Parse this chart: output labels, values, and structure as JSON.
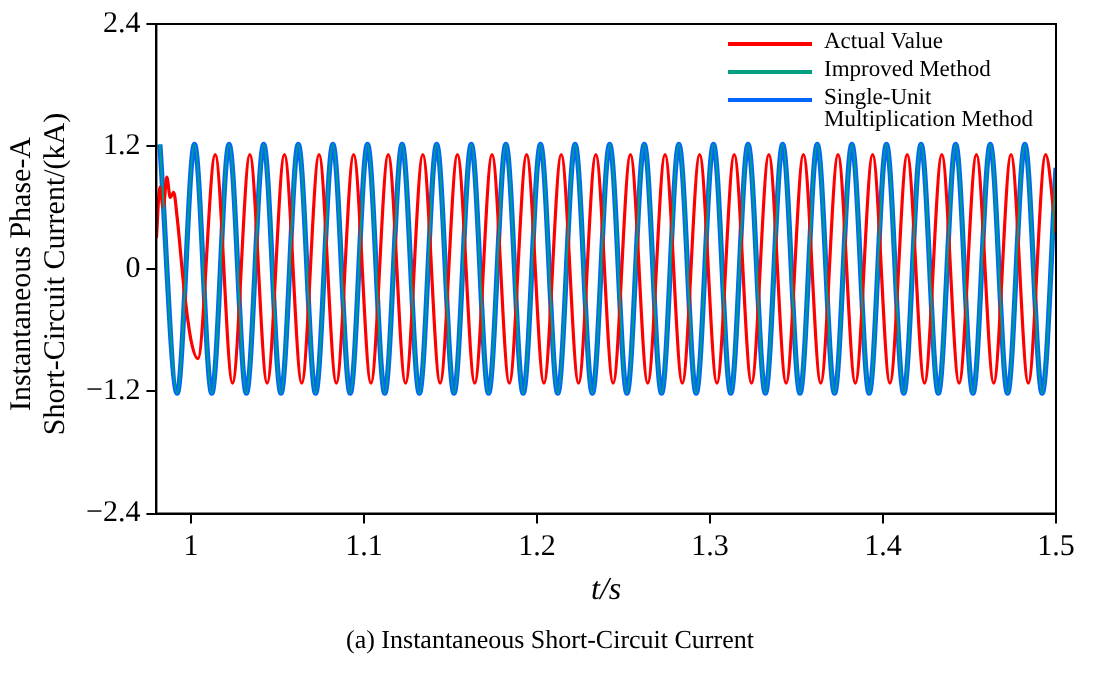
{
  "chart_data": {
    "type": "line",
    "xlabel": "t/s",
    "ylabel": "Instantaneous Phase-A Short-Circuit Current/(kA)",
    "annotations": [
      "(a) Instantaneous Short-Circuit Current"
    ],
    "xlim": [
      0.98,
      1.5
    ],
    "xticks": [
      1,
      1.1,
      1.2,
      1.3,
      1.4,
      1.5
    ],
    "ylim": [
      -2.4,
      2.4
    ],
    "yticks": [
      -2.4,
      -1.2,
      0,
      1.2,
      2.4
    ],
    "grid": false,
    "legend": "top right",
    "marker": "none",
    "line_style": "solid",
    "series": [
      {
        "name": "Actual Value",
        "color": "#ff0000",
        "x": [
          0.98,
          0.982,
          0.984,
          0.986,
          0.988,
          0.99,
          0.992,
          0.996,
          1.0,
          1.004,
          1.014,
          1.024,
          1.034,
          1.044,
          1.054,
          1.064,
          1.074,
          1.084,
          1.094,
          1.104,
          1.114,
          1.124,
          1.134,
          1.144,
          1.154,
          1.164,
          1.174,
          1.184,
          1.194,
          1.204,
          1.214,
          1.224,
          1.234,
          1.244,
          1.254,
          1.264,
          1.274,
          1.284,
          1.294,
          1.304,
          1.314,
          1.324,
          1.334,
          1.344,
          1.354,
          1.364,
          1.374,
          1.384,
          1.394,
          1.404,
          1.414,
          1.424,
          1.434,
          1.444,
          1.454,
          1.464,
          1.474,
          1.484,
          1.494,
          1.5
        ],
        "values": [
          0.3,
          0.8,
          0.6,
          0.9,
          0.7,
          0.75,
          0.5,
          -0.2,
          -0.7,
          -0.88,
          1.12,
          -1.12,
          1.12,
          -1.12,
          1.12,
          -1.12,
          1.12,
          -1.12,
          1.12,
          -1.12,
          1.12,
          -1.12,
          1.12,
          -1.12,
          1.12,
          -1.12,
          1.12,
          -1.12,
          1.12,
          -1.12,
          1.12,
          -1.12,
          1.12,
          -1.12,
          1.12,
          -1.12,
          1.12,
          -1.12,
          1.12,
          -1.12,
          1.12,
          -1.12,
          1.12,
          -1.12,
          1.12,
          -1.12,
          1.12,
          -1.12,
          1.12,
          -1.12,
          1.12,
          -1.12,
          1.12,
          -1.12,
          1.12,
          -1.12,
          1.12,
          -1.12,
          1.12,
          0.35
        ]
      },
      {
        "name": "Improved Method",
        "color": "#00a080",
        "x": [
          0.982,
          0.992,
          1.002,
          1.012,
          1.022,
          1.032,
          1.042,
          1.052,
          1.062,
          1.072,
          1.082,
          1.092,
          1.102,
          1.112,
          1.122,
          1.132,
          1.142,
          1.152,
          1.162,
          1.172,
          1.182,
          1.192,
          1.202,
          1.212,
          1.222,
          1.232,
          1.242,
          1.252,
          1.262,
          1.272,
          1.282,
          1.292,
          1.302,
          1.312,
          1.322,
          1.332,
          1.342,
          1.352,
          1.362,
          1.372,
          1.382,
          1.392,
          1.402,
          1.412,
          1.422,
          1.432,
          1.442,
          1.452,
          1.462,
          1.472,
          1.482,
          1.492,
          1.5
        ],
        "values": [
          1.22,
          -1.22,
          1.22,
          -1.22,
          1.22,
          -1.22,
          1.22,
          -1.22,
          1.22,
          -1.22,
          1.22,
          -1.22,
          1.22,
          -1.22,
          1.22,
          -1.22,
          1.22,
          -1.22,
          1.22,
          -1.22,
          1.22,
          -1.22,
          1.22,
          -1.22,
          1.22,
          -1.22,
          1.22,
          -1.22,
          1.22,
          -1.22,
          1.22,
          -1.22,
          1.22,
          -1.22,
          1.22,
          -1.22,
          1.22,
          -1.22,
          1.22,
          -1.22,
          1.22,
          -1.22,
          1.22,
          -1.22,
          1.22,
          -1.22,
          1.22,
          -1.22,
          1.22,
          -1.22,
          1.22,
          -1.22,
          0.99
        ]
      },
      {
        "name": "Single-Unit Multiplication Method",
        "color": "#0066ff",
        "x": [
          0.982,
          0.992,
          1.002,
          1.012,
          1.022,
          1.032,
          1.042,
          1.052,
          1.062,
          1.072,
          1.082,
          1.092,
          1.102,
          1.112,
          1.122,
          1.132,
          1.142,
          1.152,
          1.162,
          1.172,
          1.182,
          1.192,
          1.202,
          1.212,
          1.222,
          1.232,
          1.242,
          1.252,
          1.262,
          1.272,
          1.282,
          1.292,
          1.302,
          1.312,
          1.322,
          1.332,
          1.342,
          1.352,
          1.362,
          1.372,
          1.382,
          1.392,
          1.402,
          1.412,
          1.422,
          1.432,
          1.442,
          1.452,
          1.462,
          1.472,
          1.482,
          1.492,
          1.5
        ],
        "values": [
          1.22,
          -1.22,
          1.22,
          -1.22,
          1.22,
          -1.22,
          1.22,
          -1.22,
          1.22,
          -1.22,
          1.22,
          -1.22,
          1.22,
          -1.22,
          1.22,
          -1.22,
          1.22,
          -1.22,
          1.22,
          -1.22,
          1.22,
          -1.22,
          1.22,
          -1.22,
          1.22,
          -1.22,
          1.22,
          -1.22,
          1.22,
          -1.22,
          1.22,
          -1.22,
          1.22,
          -1.22,
          1.22,
          -1.22,
          1.22,
          -1.22,
          1.22,
          -1.22,
          1.22,
          -1.22,
          1.22,
          -1.22,
          1.22,
          -1.22,
          1.22,
          -1.22,
          1.22,
          -1.22,
          1.22,
          -1.22,
          0.99
        ]
      }
    ]
  }
}
